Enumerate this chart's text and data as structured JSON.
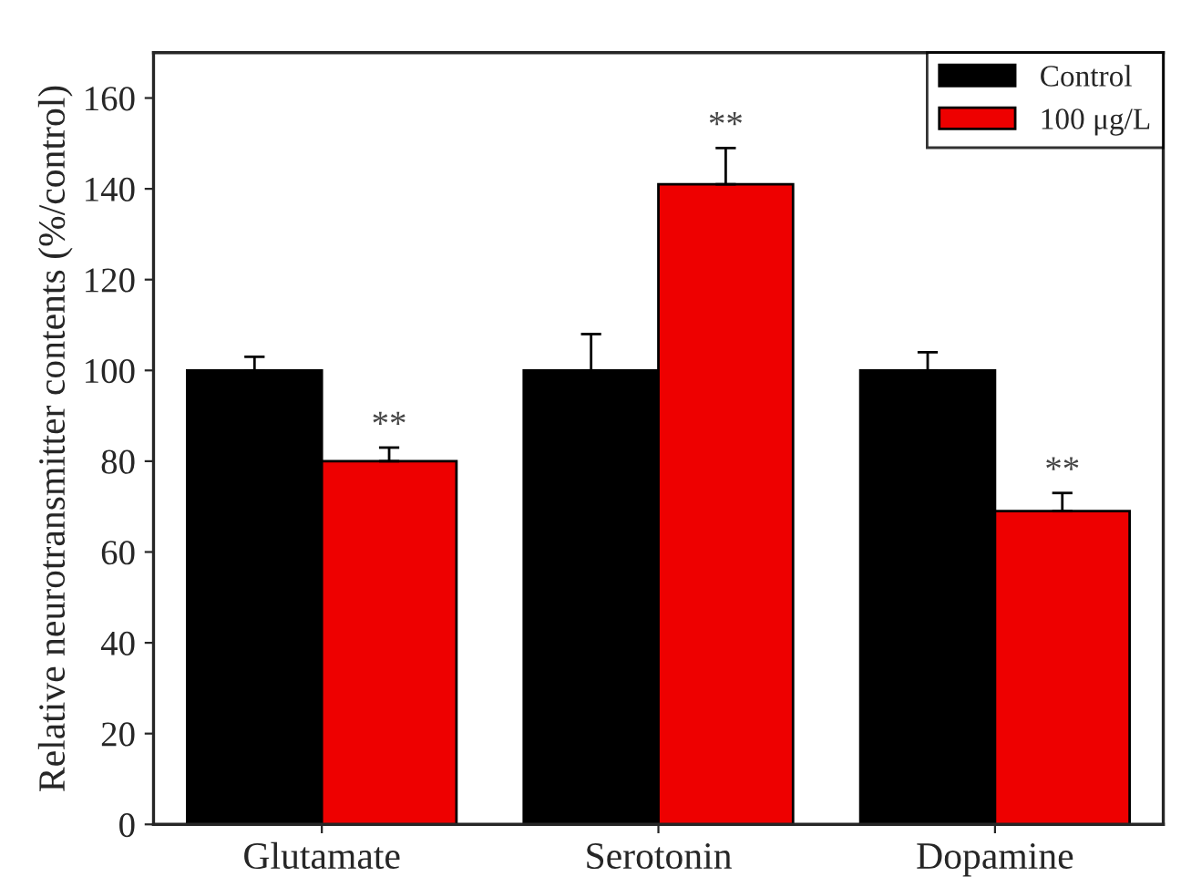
{
  "chart_data": {
    "type": "bar",
    "ylabel": "Relative neurotransmitter contents (%/control)",
    "categories": [
      "Glutamate",
      "Serotonin",
      "Dopamine"
    ],
    "series": [
      {
        "name": "Control",
        "color": "#000000",
        "values": [
          100,
          100,
          100
        ],
        "errors": [
          [
            100,
            103
          ],
          [
            100,
            108
          ],
          [
            100,
            104
          ]
        ]
      },
      {
        "name": "100 μg/L",
        "color": "#ee0000",
        "values": [
          80,
          141,
          69
        ],
        "errors": [
          [
            80,
            83
          ],
          [
            141,
            149
          ],
          [
            69,
            73
          ]
        ]
      }
    ],
    "ylim": [
      0,
      170
    ],
    "yticks": [
      0,
      20,
      40,
      60,
      80,
      100,
      120,
      140,
      160
    ],
    "grid": false,
    "legend": "top right",
    "annotations": [
      "**",
      "**",
      "**"
    ]
  }
}
